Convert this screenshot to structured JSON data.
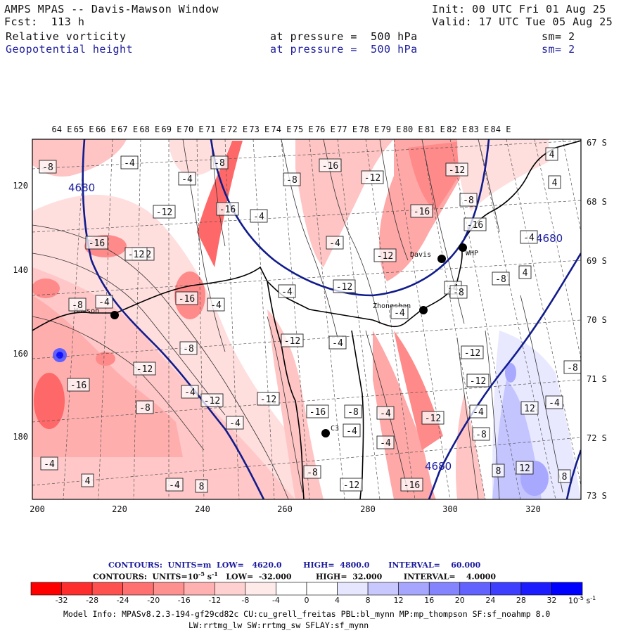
{
  "header": {
    "title": "AMPS MPAS -- Davis-Mawson Window",
    "init": "Init: 00 UTC Fri 01 Aug 25",
    "fcst": "Fcst:  113 h",
    "valid": "Valid: 17 UTC Tue 05 Aug 25",
    "field1_name": "Relative vorticity",
    "field1_level": "at pressure =  500 hPa",
    "field1_sm": "sm= 2",
    "field2_name": "Geopotential height",
    "field2_level": "at pressure =  500 hPa",
    "field2_sm": "sm= 2"
  },
  "map": {
    "top_axis_labels": [
      "64 E",
      "65 E",
      "66 E",
      "67 E",
      "68 E",
      "69 E",
      "70 E",
      "71 E",
      "72 E",
      "73 E",
      "74 E",
      "75 E",
      "76 E",
      "77 E",
      "78 E",
      "79 E",
      "80 E",
      "81 E",
      "82 E",
      "83 E",
      "84 E"
    ],
    "right_axis_labels": [
      "67 S",
      "68 S",
      "69 S",
      "70 S",
      "71 S",
      "72 S",
      "73 S"
    ],
    "left_axis_labels": [
      "120",
      "140",
      "160",
      "180"
    ],
    "bottom_axis_labels": [
      "200",
      "220",
      "240",
      "260",
      "280",
      "300",
      "320"
    ],
    "stations": [
      {
        "name": "Mawson"
      },
      {
        "name": "Davis"
      },
      {
        "name": "WHP"
      },
      {
        "name": "Zhongshan"
      },
      {
        "name": "C3"
      }
    ],
    "height_labels": [
      "4680",
      "4680",
      "4680"
    ],
    "vorticity_labels": [
      "-8",
      "-4",
      "-4",
      "-8",
      "-12",
      "-16",
      "-12",
      "-16",
      "-12",
      "-16",
      "-4",
      "-4",
      "-8",
      "-16",
      "-12",
      "-8",
      "-4",
      "-16",
      "-12",
      "-4",
      "-8",
      "-16",
      "-4",
      "-12",
      "-4",
      "-12",
      "-8",
      "-4",
      "-4",
      "-8",
      "-4",
      "-12",
      "-12",
      "-16",
      "-8",
      "-4",
      "-4",
      "-12",
      "-12",
      "-16",
      "-8",
      "-4",
      "-12",
      "-8",
      "-12",
      "-16",
      "-4",
      "-12",
      "-8",
      "-12",
      "-4",
      "-8",
      "-4",
      "-4",
      "4",
      "-4",
      "8",
      "-8",
      "-4",
      "4",
      "4",
      "8",
      "12",
      "12",
      "8",
      "4"
    ]
  },
  "legend": {
    "contours_height": "CONTOURS:  UNITS=m  LOW=   4620.0        HIGH=  4800.0       INTERVAL=    60.000",
    "contours_vort_pre": "CONTOURS:  UNITS=10",
    "contours_vort_exp": "-5",
    "contours_vort_post": " s",
    "contours_vort_exp2": "-1",
    "contours_vort_rest": "   LOW=  -32.000         HIGH=  32.000        INTERVAL=    4.0000",
    "colorbar_ticks": [
      "-32",
      "-28",
      "-24",
      "-20",
      "-16",
      "-12",
      "-8",
      "-4",
      "0",
      "4",
      "8",
      "12",
      "16",
      "20",
      "24",
      "28",
      "32"
    ],
    "colorbar_units": "10",
    "colorbar_units_exp": "-5",
    "colorbar_units_s": "s",
    "colorbar_units_exp2": "-1",
    "colorbar_colors": [
      "#ff1a1a",
      "#ff4444",
      "#ff6868",
      "#ff8a8a",
      "#ffa8a8",
      "#ffc4c4",
      "#ffdede",
      "#fff0f0",
      "#ffffff",
      "#ffffff",
      "#e8e8ff",
      "#c4c4ff",
      "#a8a8ff",
      "#8888ff",
      "#6060ff",
      "#3a3aff",
      "#1010ff"
    ]
  },
  "footer": {
    "model_info": "Model Info: MPASv8.2.3-194-gf29cd82c CU:cu_grell_freitas PBL:bl_mynn MP:mp_thompson SF:sf_noahmp 8.0",
    "physics": "LW:rrtmg_lw SW:rrtmg_sw SFLAY:sf_mynn"
  }
}
